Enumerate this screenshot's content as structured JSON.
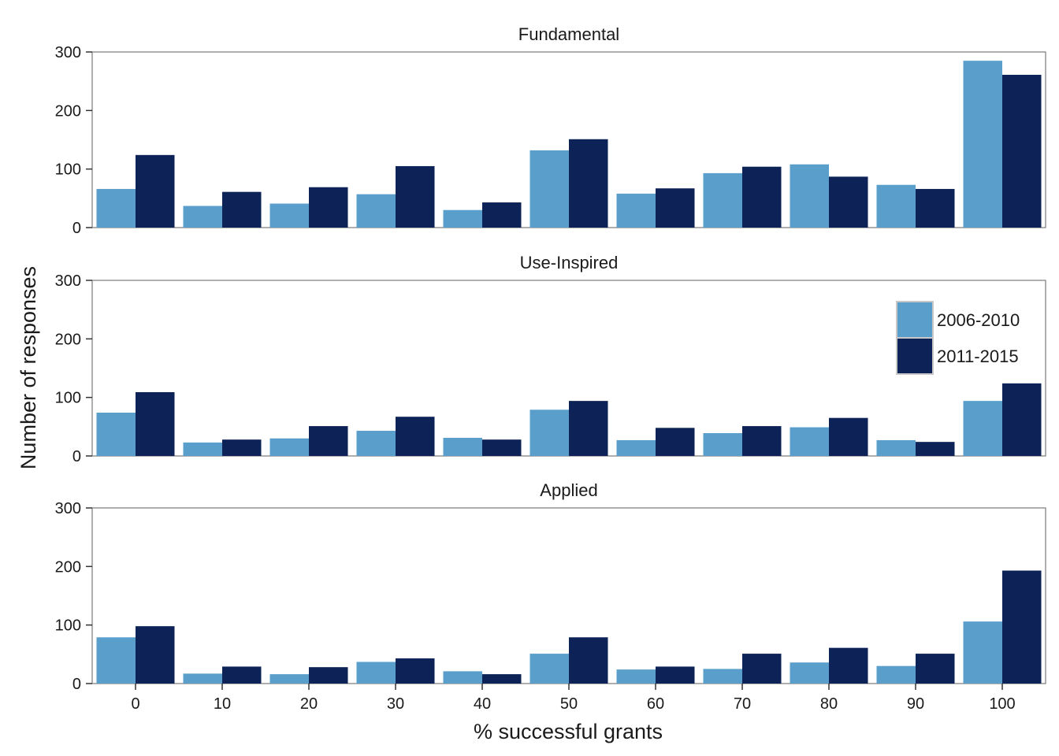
{
  "chart_data": {
    "type": "bar",
    "xlabel": "% successful grants",
    "ylabel": "Number of responses",
    "categories": [
      "0",
      "10",
      "20",
      "30",
      "40",
      "50",
      "60",
      "70",
      "80",
      "90",
      "100"
    ],
    "ylim": [
      0,
      300
    ],
    "yticks": [
      "0",
      "100",
      "200",
      "300"
    ],
    "grid": false,
    "legend_position": "right, inside middle panel",
    "colors": {
      "2006-2010": "#5a9fcc",
      "2011-2015": "#0d2357"
    },
    "legend": [
      "2006-2010",
      "2011-2015"
    ],
    "panels": [
      {
        "title": "Fundamental",
        "series": [
          {
            "name": "2006-2010",
            "values": [
              66,
              37,
              41,
              57,
              30,
              132,
              58,
              93,
              108,
              73,
              285
            ]
          },
          {
            "name": "2011-2015",
            "values": [
              124,
              61,
              69,
              105,
              43,
              151,
              67,
              104,
              87,
              66,
              261
            ]
          }
        ]
      },
      {
        "title": "Use-Inspired",
        "series": [
          {
            "name": "2006-2010",
            "values": [
              74,
              23,
              30,
              43,
              31,
              79,
              27,
              39,
              49,
              27,
              94
            ]
          },
          {
            "name": "2011-2015",
            "values": [
              109,
              28,
              51,
              67,
              28,
              94,
              48,
              51,
              65,
              24,
              124
            ]
          }
        ]
      },
      {
        "title": "Applied",
        "series": [
          {
            "name": "2006-2010",
            "values": [
              79,
              17,
              16,
              37,
              21,
              51,
              24,
              25,
              36,
              30,
              106
            ]
          },
          {
            "name": "2011-2015",
            "values": [
              98,
              29,
              28,
              43,
              16,
              79,
              29,
              51,
              61,
              51,
              193
            ]
          }
        ]
      }
    ]
  }
}
